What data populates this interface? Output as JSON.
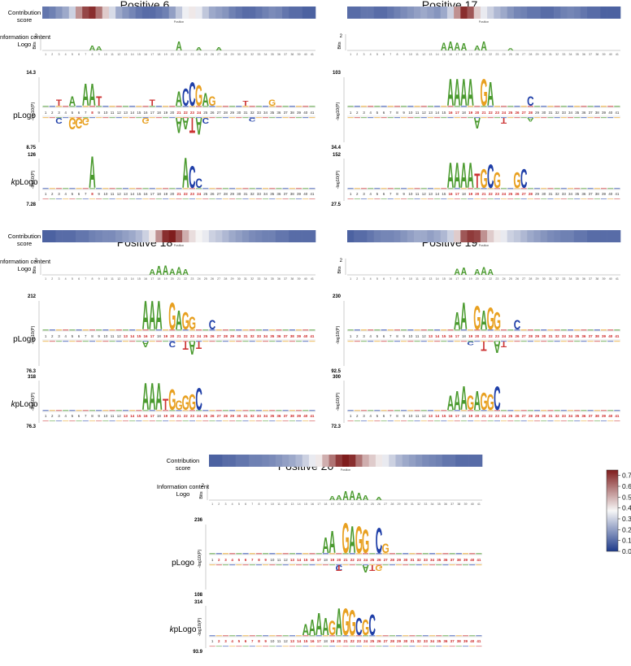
{
  "panels": [
    {
      "title": "Positive 6",
      "contribution_label": "Contribution score",
      "info_label": "Information content Logo",
      "plogo_label": "pLogo",
      "kplogo_label_prefix": "k",
      "kplogo_label_suffix": "pLogo",
      "position_label": "Position",
      "bits_label": "Bits",
      "bits_max": "2",
      "ylabel": "-log10(P)",
      "plogo_max": "14.3",
      "plogo_min": "8.75",
      "kplogo_max": "126",
      "kplogo_min": "7.28",
      "contrib_scores": [
        0.12,
        0.14,
        0.18,
        0.22,
        0.3,
        0.55,
        0.68,
        0.72,
        0.6,
        0.45,
        0.32,
        0.22,
        0.18,
        0.15,
        0.12,
        0.1,
        0.1,
        0.12,
        0.14,
        0.2,
        0.28,
        0.36,
        0.4,
        0.35,
        0.28,
        0.22,
        0.2,
        0.18,
        0.14,
        0.12,
        0.1,
        0.1,
        0.12,
        0.14,
        0.16,
        0.15,
        0.12,
        0.1,
        0.1,
        0.08,
        0.08
      ],
      "info_peaks": [
        [
          8,
          0.3
        ],
        [
          9,
          0.25
        ],
        [
          21,
          0.55
        ],
        [
          24,
          0.2
        ],
        [
          27,
          0.2
        ]
      ],
      "plogo_up": [
        [
          3,
          "T",
          "#cc3333",
          0.2
        ],
        [
          5,
          "A",
          "#4a9a2e",
          0.3
        ],
        [
          7,
          "A",
          "#4a9a2e",
          0.7
        ],
        [
          8,
          "A",
          "#4a9a2e",
          0.7
        ],
        [
          9,
          "T",
          "#cc3333",
          0.3
        ],
        [
          17,
          "T",
          "#cc3333",
          0.2
        ],
        [
          21,
          "A",
          "#4a9a2e",
          0.45
        ],
        [
          22,
          "C",
          "#1f3fa8",
          0.55
        ],
        [
          23,
          "C",
          "#1f3fa8",
          0.75
        ],
        [
          24,
          "G",
          "#e8a020",
          0.65
        ],
        [
          25,
          "A",
          "#4a9a2e",
          0.4
        ],
        [
          26,
          "G",
          "#e8a020",
          0.3
        ],
        [
          31,
          "T",
          "#cc3333",
          0.15
        ],
        [
          35,
          "G",
          "#e8a020",
          0.2
        ]
      ],
      "plogo_down": [
        [
          3,
          "C",
          "#1f3fa8",
          0.3
        ],
        [
          5,
          "G",
          "#e8a020",
          0.6
        ],
        [
          6,
          "G",
          "#e8a020",
          0.55
        ],
        [
          7,
          "G",
          "#e8a020",
          0.4
        ],
        [
          16,
          "G",
          "#e8a020",
          0.3
        ],
        [
          21,
          "A",
          "#4a9a2e",
          0.8
        ],
        [
          22,
          "A",
          "#4a9a2e",
          0.6
        ],
        [
          23,
          "T",
          "#cc3333",
          0.8
        ],
        [
          24,
          "A",
          "#4a9a2e",
          0.9
        ],
        [
          25,
          "C",
          "#1f3fa8",
          0.3
        ],
        [
          32,
          "C",
          "#1f3fa8",
          0.2
        ]
      ],
      "kplogo_up": [
        [
          8,
          "A",
          "#4a9a2e",
          1.0
        ],
        [
          22,
          "A",
          "#4a9a2e",
          0.95
        ],
        [
          23,
          "C",
          "#1f3fa8",
          0.7
        ],
        [
          24,
          "C",
          "#1f3fa8",
          0.3
        ]
      ],
      "red_ticks": [
        8,
        21,
        22,
        23,
        24
      ]
    },
    {
      "title": "Positive 17",
      "contribution_label": "",
      "info_label": "",
      "plogo_label": "",
      "kplogo_label_prefix": "",
      "kplogo_label_suffix": "",
      "position_label": "Position",
      "bits_label": "Bits",
      "bits_max": "2",
      "ylabel": "-log10(P)",
      "plogo_max": "103",
      "plogo_min": "34.4",
      "kplogo_max": "152",
      "kplogo_min": "27.5",
      "contrib_scores": [
        0.1,
        0.1,
        0.12,
        0.12,
        0.1,
        0.1,
        0.12,
        0.14,
        0.16,
        0.18,
        0.2,
        0.22,
        0.2,
        0.18,
        0.22,
        0.3,
        0.55,
        0.72,
        0.65,
        0.45,
        0.35,
        0.3,
        0.25,
        0.22,
        0.18,
        0.15,
        0.14,
        0.12,
        0.12,
        0.1,
        0.1,
        0.12,
        0.14,
        0.15,
        0.14,
        0.12,
        0.1,
        0.1,
        0.08,
        0.08,
        0.08
      ],
      "info_peaks": [
        [
          15,
          0.5
        ],
        [
          16,
          0.55
        ],
        [
          17,
          0.5
        ],
        [
          18,
          0.45
        ],
        [
          20,
          0.3
        ],
        [
          21,
          0.55
        ],
        [
          25,
          0.15
        ]
      ],
      "plogo_up": [
        [
          16,
          "A",
          "#4a9a2e",
          0.85
        ],
        [
          17,
          "A",
          "#4a9a2e",
          0.85
        ],
        [
          18,
          "A",
          "#4a9a2e",
          0.85
        ],
        [
          19,
          "A",
          "#4a9a2e",
          0.85
        ],
        [
          21,
          "G",
          "#e8a020",
          0.85
        ],
        [
          22,
          "A",
          "#4a9a2e",
          0.75
        ],
        [
          28,
          "C",
          "#1f3fa8",
          0.3
        ]
      ],
      "plogo_down": [
        [
          20,
          "A",
          "#4a9a2e",
          0.55
        ],
        [
          24,
          "T",
          "#cc3333",
          0.3
        ],
        [
          28,
          "A",
          "#4a9a2e",
          0.2
        ]
      ],
      "kplogo_up": [
        [
          16,
          "A",
          "#4a9a2e",
          0.8
        ],
        [
          17,
          "A",
          "#4a9a2e",
          0.8
        ],
        [
          18,
          "A",
          "#4a9a2e",
          0.8
        ],
        [
          19,
          "A",
          "#4a9a2e",
          0.8
        ],
        [
          20,
          "T",
          "#cc3333",
          0.45
        ],
        [
          21,
          "G",
          "#e8a020",
          0.6
        ],
        [
          22,
          "C",
          "#1f3fa8",
          0.75
        ],
        [
          23,
          "G",
          "#e8a020",
          0.5
        ],
        [
          26,
          "G",
          "#e8a020",
          0.5
        ],
        [
          27,
          "C",
          "#1f3fa8",
          0.6
        ]
      ],
      "red_ticks": [
        16,
        17,
        19,
        20,
        21,
        22,
        23,
        24,
        25,
        26,
        27,
        28
      ]
    },
    {
      "title": "Positive 18",
      "contribution_label": "Contribution score",
      "info_label": "Information content Logo",
      "plogo_label": "pLogo",
      "kplogo_label_prefix": "k",
      "kplogo_label_suffix": "pLogo",
      "position_label": "Position",
      "bits_label": "Bits",
      "bits_max": "2",
      "ylabel": "-log10(P)",
      "plogo_max": "212",
      "plogo_min": "76.3",
      "kplogo_max": "318",
      "kplogo_min": "76.3",
      "contrib_scores": [
        0.08,
        0.08,
        0.1,
        0.1,
        0.1,
        0.12,
        0.12,
        0.14,
        0.15,
        0.16,
        0.16,
        0.18,
        0.2,
        0.22,
        0.25,
        0.3,
        0.4,
        0.55,
        0.72,
        0.75,
        0.65,
        0.5,
        0.42,
        0.38,
        0.35,
        0.3,
        0.28,
        0.25,
        0.22,
        0.2,
        0.18,
        0.16,
        0.15,
        0.14,
        0.14,
        0.12,
        0.12,
        0.1,
        0.1,
        0.1,
        0.1
      ],
      "info_peaks": [
        [
          17,
          0.35
        ],
        [
          18,
          0.55
        ],
        [
          19,
          0.6
        ],
        [
          20,
          0.4
        ],
        [
          21,
          0.5
        ],
        [
          22,
          0.35
        ]
      ],
      "plogo_up": [
        [
          16,
          "A",
          "#4a9a2e",
          0.9
        ],
        [
          17,
          "A",
          "#4a9a2e",
          0.9
        ],
        [
          18,
          "A",
          "#4a9a2e",
          0.9
        ],
        [
          20,
          "G",
          "#e8a020",
          0.85
        ],
        [
          21,
          "A",
          "#4a9a2e",
          0.6
        ],
        [
          22,
          "G",
          "#e8a020",
          0.55
        ],
        [
          23,
          "G",
          "#e8a020",
          0.4
        ],
        [
          26,
          "C",
          "#1f3fa8",
          0.3
        ]
      ],
      "plogo_down": [
        [
          16,
          "A",
          "#4a9a2e",
          0.3
        ],
        [
          20,
          "C",
          "#1f3fa8",
          0.3
        ],
        [
          22,
          "T",
          "#cc3333",
          0.45
        ],
        [
          23,
          "A",
          "#4a9a2e",
          0.7
        ],
        [
          24,
          "T",
          "#cc3333",
          0.4
        ]
      ],
      "kplogo_up": [
        [
          16,
          "A",
          "#4a9a2e",
          0.85
        ],
        [
          17,
          "A",
          "#4a9a2e",
          0.85
        ],
        [
          18,
          "A",
          "#4a9a2e",
          0.85
        ],
        [
          19,
          "T",
          "#cc3333",
          0.35
        ],
        [
          20,
          "G",
          "#e8a020",
          0.65
        ],
        [
          21,
          "G",
          "#e8a020",
          0.3
        ],
        [
          22,
          "G",
          "#e8a020",
          0.45
        ],
        [
          23,
          "G",
          "#e8a020",
          0.5
        ],
        [
          24,
          "C",
          "#1f3fa8",
          0.7
        ]
      ],
      "red_ticks": [
        13,
        14,
        15,
        16,
        17,
        19,
        20,
        21,
        22,
        23,
        24,
        25,
        26,
        27,
        28,
        29,
        30,
        31,
        32,
        33,
        34,
        35,
        36,
        37,
        38,
        39,
        40,
        41
      ]
    },
    {
      "title": "Positive 19",
      "contribution_label": "",
      "info_label": "",
      "plogo_label": "",
      "kplogo_label_prefix": "",
      "kplogo_label_suffix": "",
      "position_label": "Position",
      "bits_label": "Bits",
      "bits_max": "2",
      "ylabel": "-log10(P)",
      "plogo_max": "230",
      "plogo_min": "92.5",
      "kplogo_max": "300",
      "kplogo_min": "72.3",
      "contrib_scores": [
        0.08,
        0.1,
        0.1,
        0.12,
        0.14,
        0.15,
        0.15,
        0.16,
        0.18,
        0.2,
        0.22,
        0.22,
        0.2,
        0.22,
        0.25,
        0.3,
        0.45,
        0.65,
        0.7,
        0.68,
        0.55,
        0.45,
        0.4,
        0.35,
        0.3,
        0.28,
        0.25,
        0.22,
        0.2,
        0.18,
        0.16,
        0.15,
        0.14,
        0.14,
        0.12,
        0.12,
        0.1,
        0.1,
        0.1,
        0.1,
        0.1
      ],
      "info_peaks": [
        [
          17,
          0.4
        ],
        [
          18,
          0.45
        ],
        [
          20,
          0.35
        ],
        [
          21,
          0.5
        ],
        [
          22,
          0.35
        ]
      ],
      "plogo_up": [
        [
          17,
          "A",
          "#4a9a2e",
          0.55
        ],
        [
          18,
          "A",
          "#4a9a2e",
          0.85
        ],
        [
          20,
          "G",
          "#e8a020",
          0.75
        ],
        [
          21,
          "A",
          "#4a9a2e",
          0.6
        ],
        [
          22,
          "G",
          "#e8a020",
          0.7
        ],
        [
          23,
          "G",
          "#e8a020",
          0.55
        ],
        [
          26,
          "C",
          "#1f3fa8",
          0.3
        ]
      ],
      "plogo_down": [
        [
          19,
          "C",
          "#1f3fa8",
          0.2
        ],
        [
          21,
          "T",
          "#cc3333",
          0.5
        ],
        [
          23,
          "A",
          "#4a9a2e",
          0.6
        ],
        [
          24,
          "T",
          "#cc3333",
          0.3
        ]
      ],
      "kplogo_up": [
        [
          16,
          "A",
          "#4a9a2e",
          0.45
        ],
        [
          17,
          "A",
          "#4a9a2e",
          0.6
        ],
        [
          18,
          "A",
          "#4a9a2e",
          0.75
        ],
        [
          19,
          "G",
          "#e8a020",
          0.45
        ],
        [
          20,
          "A",
          "#4a9a2e",
          0.6
        ],
        [
          21,
          "G",
          "#e8a020",
          0.55
        ],
        [
          22,
          "G",
          "#e8a020",
          0.5
        ],
        [
          23,
          "C",
          "#1f3fa8",
          0.75
        ]
      ],
      "red_ticks": [
        13,
        14,
        15,
        16,
        17,
        19,
        20,
        21,
        22,
        23,
        24,
        25,
        26,
        27,
        28,
        29,
        30,
        31,
        32,
        33,
        34,
        35,
        36,
        37,
        38,
        39,
        40,
        41
      ]
    },
    {
      "title": "Positive 20",
      "contribution_label": "Contribution score",
      "info_label": "Information content Logo",
      "plogo_label": "pLogo",
      "kplogo_label_prefix": "k",
      "kplogo_label_suffix": "pLogo",
      "position_label": "Position",
      "bits_label": "Bits",
      "bits_max": "2",
      "ylabel": "-log10(P)",
      "plogo_max": "236",
      "plogo_min": "108",
      "kplogo_max": "314",
      "kplogo_min": "93.9",
      "contrib_scores": [
        0.08,
        0.08,
        0.1,
        0.1,
        0.12,
        0.12,
        0.14,
        0.14,
        0.15,
        0.16,
        0.18,
        0.2,
        0.22,
        0.25,
        0.3,
        0.35,
        0.4,
        0.5,
        0.6,
        0.7,
        0.75,
        0.72,
        0.6,
        0.5,
        0.45,
        0.4,
        0.35,
        0.3,
        0.25,
        0.22,
        0.2,
        0.18,
        0.16,
        0.15,
        0.14,
        0.12,
        0.12,
        0.1,
        0.1,
        0.1,
        0.1
      ],
      "info_peaks": [
        [
          19,
          0.25
        ],
        [
          20,
          0.3
        ],
        [
          21,
          0.55
        ],
        [
          22,
          0.6
        ],
        [
          23,
          0.45
        ],
        [
          24,
          0.3
        ],
        [
          26,
          0.2
        ]
      ],
      "plogo_up": [
        [
          18,
          "A",
          "#4a9a2e",
          0.5
        ],
        [
          19,
          "A",
          "#4a9a2e",
          0.7
        ],
        [
          21,
          "G",
          "#e8a020",
          0.95
        ],
        [
          22,
          "A",
          "#4a9a2e",
          0.85
        ],
        [
          23,
          "G",
          "#e8a020",
          0.85
        ],
        [
          24,
          "G",
          "#e8a020",
          0.75
        ],
        [
          26,
          "C",
          "#1f3fa8",
          0.8
        ],
        [
          27,
          "G",
          "#e8a020",
          0.3
        ]
      ],
      "plogo_down": [
        [
          20,
          "C",
          "#1f3fa8",
          0.3
        ],
        [
          20,
          "T",
          "#cc3333",
          0.3
        ],
        [
          24,
          "A",
          "#4a9a2e",
          0.4
        ],
        [
          25,
          "T",
          "#cc3333",
          0.3
        ],
        [
          26,
          "G",
          "#e8a020",
          0.3
        ]
      ],
      "kplogo_up": [
        [
          15,
          "A",
          "#4a9a2e",
          0.35
        ],
        [
          16,
          "A",
          "#4a9a2e",
          0.5
        ],
        [
          17,
          "A",
          "#4a9a2e",
          0.7
        ],
        [
          18,
          "A",
          "#4a9a2e",
          0.55
        ],
        [
          19,
          "G",
          "#e8a020",
          0.45
        ],
        [
          20,
          "A",
          "#4a9a2e",
          0.85
        ],
        [
          21,
          "G",
          "#e8a020",
          0.85
        ],
        [
          22,
          "G",
          "#e8a020",
          0.8
        ],
        [
          23,
          "C",
          "#1f3fa8",
          0.55
        ],
        [
          24,
          "G",
          "#e8a020",
          0.5
        ],
        [
          25,
          "C",
          "#1f3fa8",
          0.65
        ]
      ],
      "red_ticks": [
        2,
        3,
        4,
        5,
        6,
        7,
        8,
        9,
        13,
        14,
        15,
        16,
        17,
        19,
        20,
        21,
        22,
        23,
        24,
        25,
        26,
        27,
        28,
        29,
        30,
        31,
        32,
        33,
        34,
        35,
        36,
        37,
        38,
        39,
        40,
        41
      ]
    }
  ],
  "colorbar": {
    "ticks": [
      "0.7",
      "0.6",
      "0.5",
      "0.4",
      "0.3",
      "0.2",
      "0.1",
      "0.0"
    ],
    "min": 0.0,
    "max": 0.75
  },
  "colors": {
    "A": "#4a9a2e",
    "C": "#1f3fa8",
    "G": "#e8a020",
    "T": "#cc3333",
    "cmap_low": "#1e3a8a",
    "cmap_mid": "#f7f7f7",
    "cmap_high": "#7f1d1d"
  }
}
